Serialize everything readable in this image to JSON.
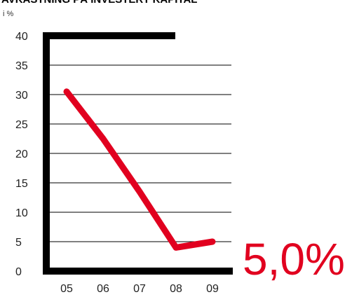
{
  "chart_data": {
    "type": "line",
    "title": "AVKASTNING PÅ INVESTERT KAPITAL",
    "unit_label": "i %",
    "categories": [
      "05",
      "06",
      "07",
      "08",
      "09"
    ],
    "series": [
      {
        "values": [
          30.5,
          22.5,
          13.5,
          4,
          5
        ]
      }
    ],
    "y_ticks": [
      "0",
      "5",
      "10",
      "15",
      "20",
      "25",
      "30",
      "35",
      "40"
    ],
    "ylim": [
      0,
      40
    ],
    "grid": true,
    "highlight_value": "5,0%",
    "colors": {
      "line": "#e1001f",
      "axis": "#000000",
      "grid": "#000000",
      "highlight": "#e1001f"
    }
  }
}
